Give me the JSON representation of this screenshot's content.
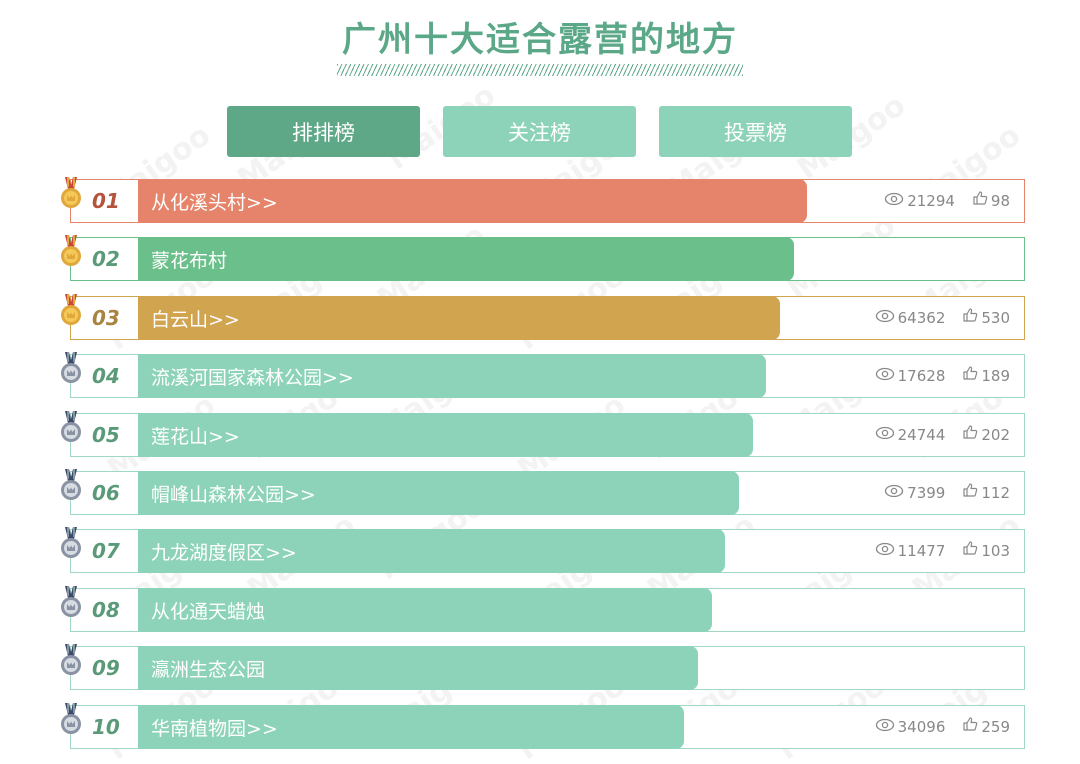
{
  "title": "广州十大适合露营的地方",
  "tabs": [
    {
      "label": "排排榜",
      "active": true
    },
    {
      "label": "关注榜",
      "active": false
    },
    {
      "label": "投票榜",
      "active": false
    }
  ],
  "watermark": "Maigoo",
  "colors": {
    "title": "#5ba888",
    "tab_active": "#5ea888",
    "tab_inactive": "#8dd3b9",
    "rank1": "#e5846a",
    "rank2": "#6bbf8a",
    "rank3": "#d1a450",
    "rank_other": "#8dd3b9"
  },
  "items": [
    {
      "rank": "01",
      "name": "从化溪头村>>",
      "views": "21294",
      "likes": "98",
      "medal": "gold",
      "bar_fill": 0.98
    },
    {
      "rank": "02",
      "name": "蒙花布村",
      "views": "",
      "likes": "",
      "medal": "gold",
      "bar_fill": 0.96
    },
    {
      "rank": "03",
      "name": "白云山>>",
      "views": "64362",
      "likes": "530",
      "medal": "gold",
      "bar_fill": 0.94
    },
    {
      "rank": "04",
      "name": "流溪河国家森林公园>>",
      "views": "17628",
      "likes": "189",
      "medal": "silver",
      "bar_fill": 0.92
    },
    {
      "rank": "05",
      "name": "莲花山>>",
      "views": "24744",
      "likes": "202",
      "medal": "silver",
      "bar_fill": 0.9
    },
    {
      "rank": "06",
      "name": "帽峰山森林公园>>",
      "views": "7399",
      "likes": "112",
      "medal": "silver",
      "bar_fill": 0.88
    },
    {
      "rank": "07",
      "name": "九龙湖度假区>>",
      "views": "11477",
      "likes": "103",
      "medal": "silver",
      "bar_fill": 0.86
    },
    {
      "rank": "08",
      "name": "从化通天蜡烛",
      "views": "",
      "likes": "",
      "medal": "silver",
      "bar_fill": 0.84
    },
    {
      "rank": "09",
      "name": "瀛洲生态公园",
      "views": "",
      "likes": "",
      "medal": "silver",
      "bar_fill": 0.82
    },
    {
      "rank": "10",
      "name": "华南植物园>>",
      "views": "34096",
      "likes": "259",
      "medal": "silver",
      "bar_fill": 0.8
    }
  ]
}
